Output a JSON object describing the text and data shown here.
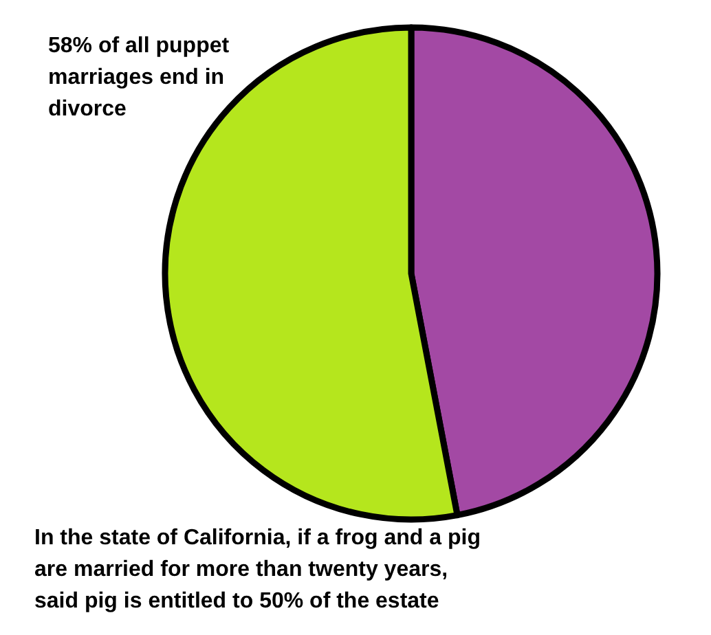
{
  "chart_data": {
    "type": "pie",
    "categories": [
      null,
      null
    ],
    "values": [
      47,
      53
    ],
    "colors": [
      "#a349a4",
      "#b5e61d"
    ],
    "annotations": [
      "58% of all puppet marriages end in divorce",
      "In the state of California, if a frog and a pig are married for more than twenty years, said pig is entitled to 50% of the estate"
    ]
  }
}
